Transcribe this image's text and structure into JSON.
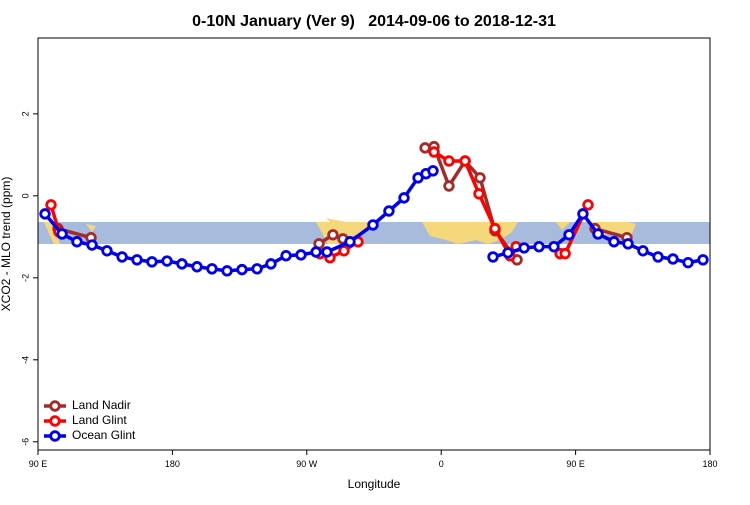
{
  "chart_data": {
    "type": "line",
    "title": "0-10N January (Ver 9)   2014-09-06 to 2018-12-31",
    "xlabel": "Longitude",
    "ylabel": "XCO2 - MLO trend (ppm)",
    "xlim": [
      90,
      540
    ],
    "ylim": [
      -6.2,
      3.85
    ],
    "xticks": [
      {
        "value": 90,
        "label": "90 E"
      },
      {
        "value": 180,
        "label": "180"
      },
      {
        "value": 270,
        "label": "90 W"
      },
      {
        "value": 360,
        "label": "0"
      },
      {
        "value": 450,
        "label": "90 E"
      },
      {
        "value": 540,
        "label": "180"
      }
    ],
    "yticks": [
      2,
      0,
      -2,
      -4,
      -6
    ],
    "legend": "bottom-left",
    "series": [
      {
        "name": "Land Nadir",
        "color": "#a52a2a",
        "x": [
          103.4,
          125.5,
          200,
          278.2,
          287.5,
          294.2,
          303.6,
          330,
          349.2,
          355.2,
          365.2,
          376.0,
          386.0,
          396.0,
          410.8,
          430,
          463.0,
          484.4
        ],
        "values": [
          -0.8,
          -1.02,
          null,
          -1.17,
          -0.95,
          -1.05,
          -1.1,
          null,
          1.17,
          1.2,
          0.24,
          0.85,
          0.44,
          -0.85,
          -1.56,
          null,
          -0.8,
          -1.02
        ]
      },
      {
        "name": "Land Glint",
        "color": "#ff0000",
        "x": [
          98.7,
          104.0,
          200,
          278.8,
          285.5,
          294.9,
          304.3,
          330,
          355.2,
          365.2,
          376.0,
          385.3,
          396.0,
          406.1,
          410.1,
          430,
          439.6,
          443.0,
          458.3
        ],
        "values": [
          -0.22,
          -0.88,
          null,
          -1.41,
          -1.51,
          -1.34,
          -1.12,
          null,
          1.07,
          0.85,
          0.85,
          0.05,
          -0.8,
          -1.46,
          -1.24,
          null,
          -1.41,
          -1.41,
          -0.22
        ]
      },
      {
        "name": "Ocean Glint",
        "color": "#0000ee",
        "x": [
          94.7,
          106.1,
          116.1,
          126.2,
          136.2,
          146.3,
          156.3,
          166.3,
          176.4,
          186.4,
          196.5,
          206.5,
          216.6,
          226.6,
          236.7,
          246.0,
          256.1,
          266.1,
          276.2,
          283.5,
          298.9,
          314.3,
          325.0,
          335.1,
          344.5,
          349.8,
          354.5,
          375,
          394.7,
          404.7,
          415.5,
          425.5,
          435.5,
          445.6,
          454.9,
          465.0,
          475.7,
          485.1,
          495.1,
          505.2,
          515.2,
          525.3,
          535.3
        ],
        "values": [
          -0.44,
          -0.93,
          -1.12,
          -1.2,
          -1.34,
          -1.49,
          -1.56,
          -1.61,
          -1.59,
          -1.66,
          -1.73,
          -1.78,
          -1.83,
          -1.8,
          -1.78,
          -1.66,
          -1.46,
          -1.44,
          -1.37,
          -1.37,
          -1.12,
          -0.71,
          -0.37,
          -0.05,
          0.44,
          0.54,
          0.61,
          null,
          -1.49,
          -1.39,
          -1.27,
          -1.24,
          -1.24,
          -0.95,
          -0.44,
          -0.93,
          -1.12,
          -1.17,
          -1.34,
          -1.49,
          -1.54,
          -1.63,
          -1.56
        ]
      }
    ]
  }
}
